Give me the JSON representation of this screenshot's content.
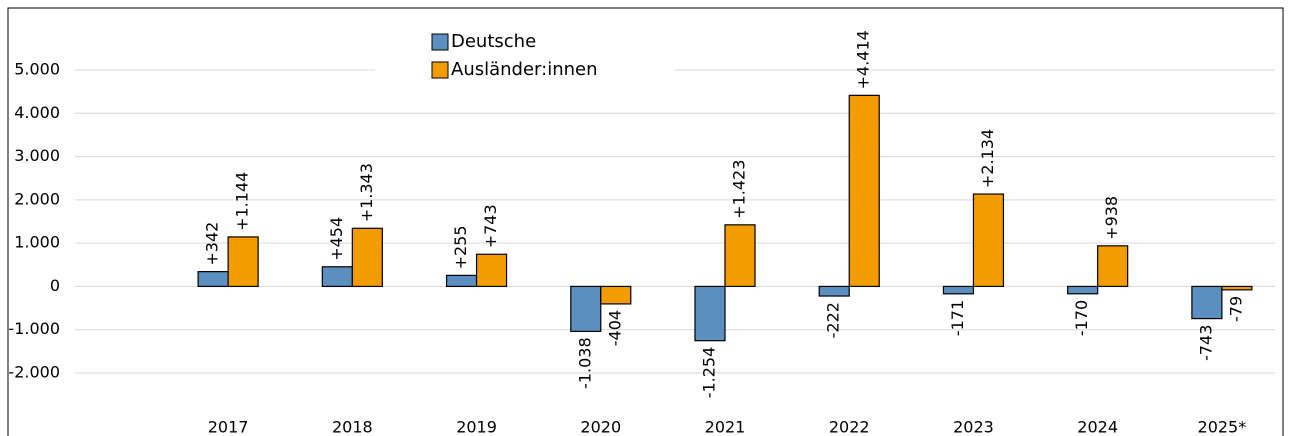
{
  "chart_data": {
    "type": "bar",
    "categories": [
      "2017",
      "2018",
      "2019",
      "2020",
      "2021",
      "2022",
      "2023",
      "2024",
      "2025*"
    ],
    "series": [
      {
        "name": "Deutsche",
        "color": "#5b8fc0",
        "values": [
          342,
          454,
          255,
          -1038,
          -1254,
          -222,
          -171,
          -170,
          -743
        ],
        "value_labels": [
          "+342",
          "+454",
          "+255",
          "-1.038",
          "-1.254",
          "-222",
          "-171",
          "-170",
          "-743"
        ]
      },
      {
        "name": "Ausländer:innen",
        "color": "#f39c00",
        "values": [
          1144,
          1343,
          743,
          -404,
          1423,
          4414,
          2134,
          938,
          -79
        ],
        "value_labels": [
          "+1.144",
          "+1.343",
          "+743",
          "-404",
          "+1.423",
          "+4.414",
          "+2.134",
          "+938",
          "-79"
        ]
      }
    ],
    "ylim": [
      -2000,
      5000
    ],
    "yticks": [
      {
        "value": -2000,
        "label": "-2.000"
      },
      {
        "value": -1000,
        "label": "-1.000"
      },
      0,
      {
        "value": 1000,
        "label": "1.000"
      },
      {
        "value": 2000,
        "label": "2.000"
      },
      {
        "value": 3000,
        "label": "3.000"
      },
      {
        "value": 4000,
        "label": "4.000"
      },
      {
        "value": 5000,
        "label": "5.000"
      }
    ],
    "grid": true,
    "legend": "top"
  }
}
